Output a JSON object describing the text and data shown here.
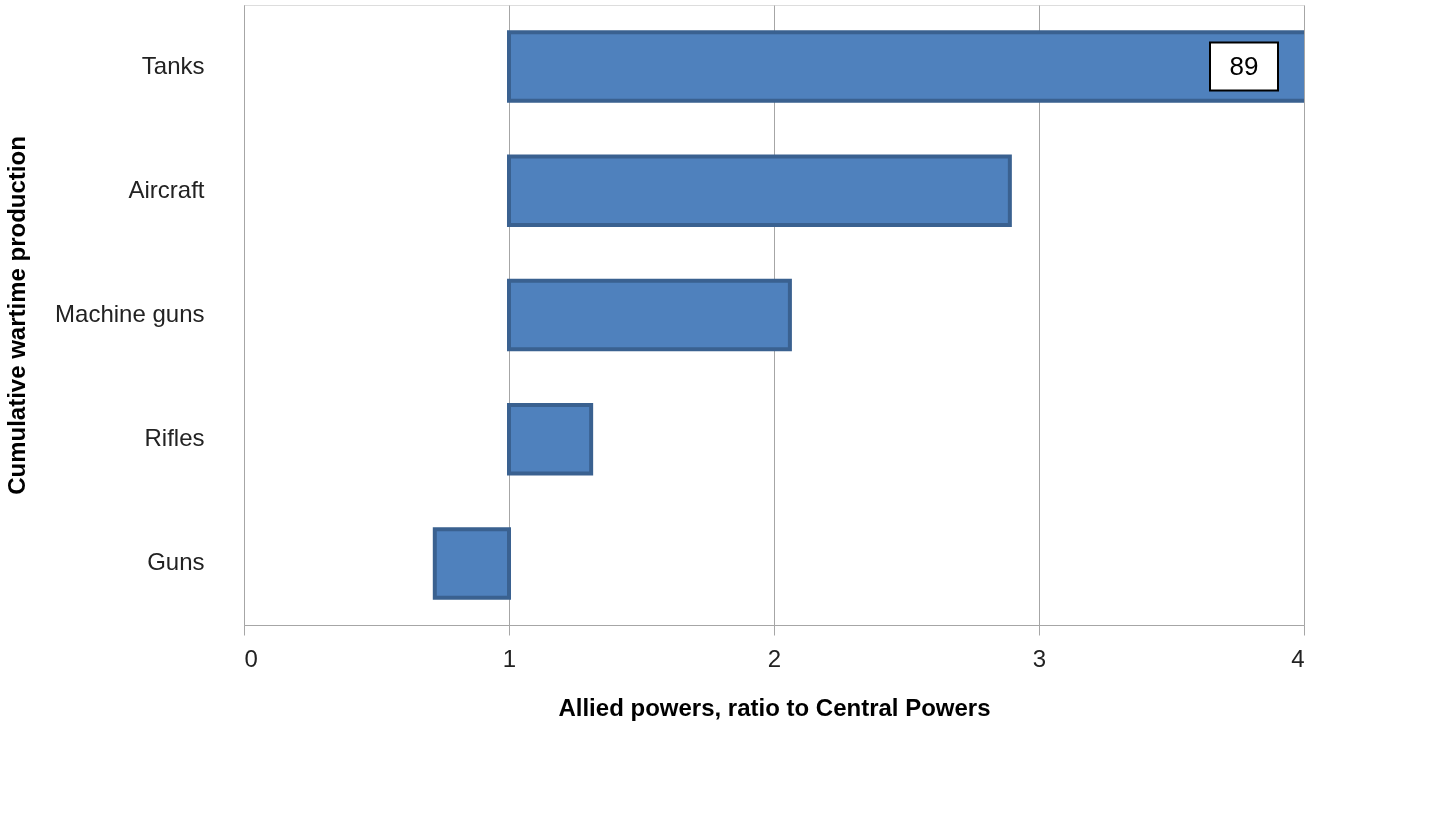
{
  "chart_data": {
    "type": "bar",
    "orientation": "horizontal",
    "categories": [
      "Tanks",
      "Aircraft",
      "Machine guns",
      "Rifles",
      "Guns"
    ],
    "base": [
      1,
      1,
      1,
      1,
      0.72
    ],
    "values": [
      88,
      1.89,
      1.06,
      0.31,
      0.28
    ],
    "value_labels": [
      "89",
      null,
      null,
      null,
      null
    ],
    "color": "#4f81bd",
    "xlabel": "Allied powers, ratio to Central Powers",
    "ylabel": "Cumulative wartime production",
    "xlim": [
      0,
      4
    ],
    "xticks": [
      0,
      1,
      2,
      3,
      4
    ],
    "grid": "x"
  }
}
